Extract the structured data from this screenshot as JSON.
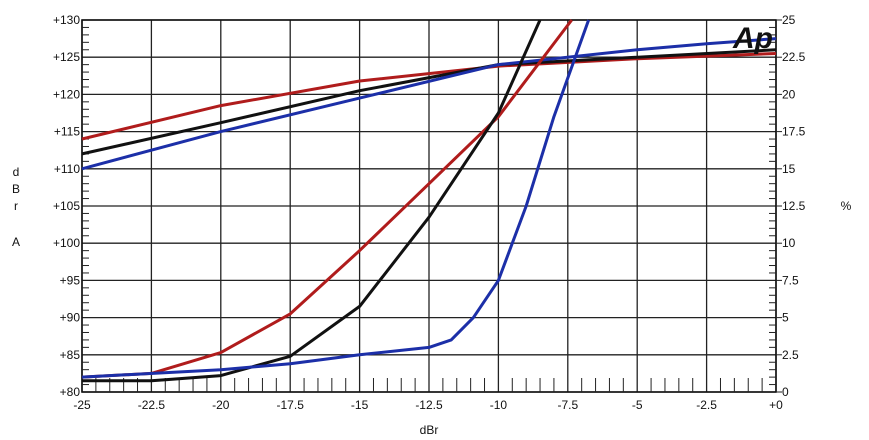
{
  "chart_data": {
    "type": "line",
    "title": "",
    "logo_text": "Ap",
    "xlabel": "dBr",
    "ylabel_left": [
      "d",
      "B",
      "r",
      "A"
    ],
    "ylabel_right": "%",
    "xlim": [
      -25,
      0
    ],
    "ylim_left": [
      80,
      130
    ],
    "ylim_right": [
      0,
      25
    ],
    "grid": true,
    "x_ticks": [
      "-25",
      "-22.5",
      "-20",
      "-17.5",
      "-15",
      "-12.5",
      "-10",
      "-7.5",
      "-5",
      "-2.5",
      "+0"
    ],
    "x_tick_values": [
      -25,
      -22.5,
      -20,
      -17.5,
      -15,
      -12.5,
      -10,
      -7.5,
      -5,
      -2.5,
      0
    ],
    "y_left_ticks": [
      "+130",
      "+125",
      "+120",
      "+115",
      "+110",
      "+105",
      "+100",
      "+95",
      "+90",
      "+85",
      "+80"
    ],
    "y_left_tick_values": [
      130,
      125,
      120,
      115,
      110,
      105,
      100,
      95,
      90,
      85,
      80
    ],
    "y_right_ticks": [
      "25",
      "22.5",
      "20",
      "17.5",
      "15",
      "12.5",
      "10",
      "7.5",
      "5",
      "2.5",
      "0"
    ],
    "y_right_tick_values": [
      25,
      22.5,
      20,
      17.5,
      15,
      12.5,
      10,
      7.5,
      5,
      2.5,
      0
    ],
    "series": [
      {
        "name": "level-red",
        "axis": "left",
        "color": "#b01c1c",
        "x": [
          -25,
          -20,
          -15,
          -10,
          -5,
          0
        ],
        "y": [
          114,
          118.5,
          121.8,
          123.8,
          124.8,
          125.5
        ]
      },
      {
        "name": "level-black",
        "axis": "left",
        "color": "#111111",
        "x": [
          -25,
          -20,
          -15,
          -10,
          -5,
          0
        ],
        "y": [
          112,
          116.2,
          120.5,
          124,
          125,
          126
        ]
      },
      {
        "name": "level-blue",
        "axis": "left",
        "color": "#1c2fa8",
        "x": [
          -25,
          -20,
          -15,
          -10,
          -5,
          -2.5,
          0
        ],
        "y": [
          110,
          115,
          119.5,
          124,
          126,
          126.8,
          127.5
        ]
      },
      {
        "name": "thd-red",
        "axis": "right",
        "color": "#b01c1c",
        "x": [
          -25,
          -22.5,
          -20,
          -17.5,
          -15,
          -12.5,
          -10,
          -7.36
        ],
        "y": [
          1,
          1.25,
          2.65,
          5.25,
          9.5,
          14,
          18.5,
          25
        ]
      },
      {
        "name": "thd-black",
        "axis": "right",
        "color": "#111111",
        "x": [
          -25,
          -22.5,
          -20,
          -17.5,
          -15,
          -12.5,
          -10,
          -8.5
        ],
        "y": [
          0.75,
          0.75,
          1.1,
          2.4,
          5.75,
          11.75,
          18.75,
          25
        ]
      },
      {
        "name": "thd-blue",
        "axis": "right",
        "color": "#1c2fa8",
        "x": [
          -25,
          -20,
          -17.5,
          -15,
          -12.5,
          -11.7,
          -10.9,
          -10,
          -9,
          -8,
          -6.75
        ],
        "y": [
          1,
          1.5,
          1.9,
          2.5,
          3,
          3.5,
          5,
          7.5,
          12.5,
          18.5,
          25
        ]
      }
    ]
  }
}
